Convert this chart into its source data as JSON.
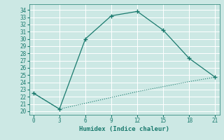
{
  "xlabel": "Humidex (Indice chaleur)",
  "x": [
    0,
    3,
    6,
    9,
    12,
    15,
    18,
    21
  ],
  "line1_y": [
    22.5,
    20.3,
    30.0,
    33.2,
    33.8,
    31.2,
    27.3,
    24.7
  ],
  "line2_y": [
    22.5,
    20.3,
    21.1,
    21.9,
    22.7,
    23.4,
    24.1,
    24.7
  ],
  "line_color": "#1a7a6e",
  "bg_color": "#cce8e4",
  "grid_color": "#b0d8d4",
  "xlim": [
    -0.5,
    21.5
  ],
  "ylim": [
    19.5,
    34.8
  ],
  "yticks": [
    20,
    21,
    22,
    23,
    24,
    25,
    26,
    27,
    28,
    29,
    30,
    31,
    32,
    33,
    34
  ],
  "xticks": [
    0,
    3,
    6,
    9,
    12,
    15,
    18,
    21
  ],
  "tick_fontsize": 5.5,
  "xlabel_fontsize": 6.5,
  "figwidth": 3.2,
  "figheight": 2.0,
  "dpi": 100
}
